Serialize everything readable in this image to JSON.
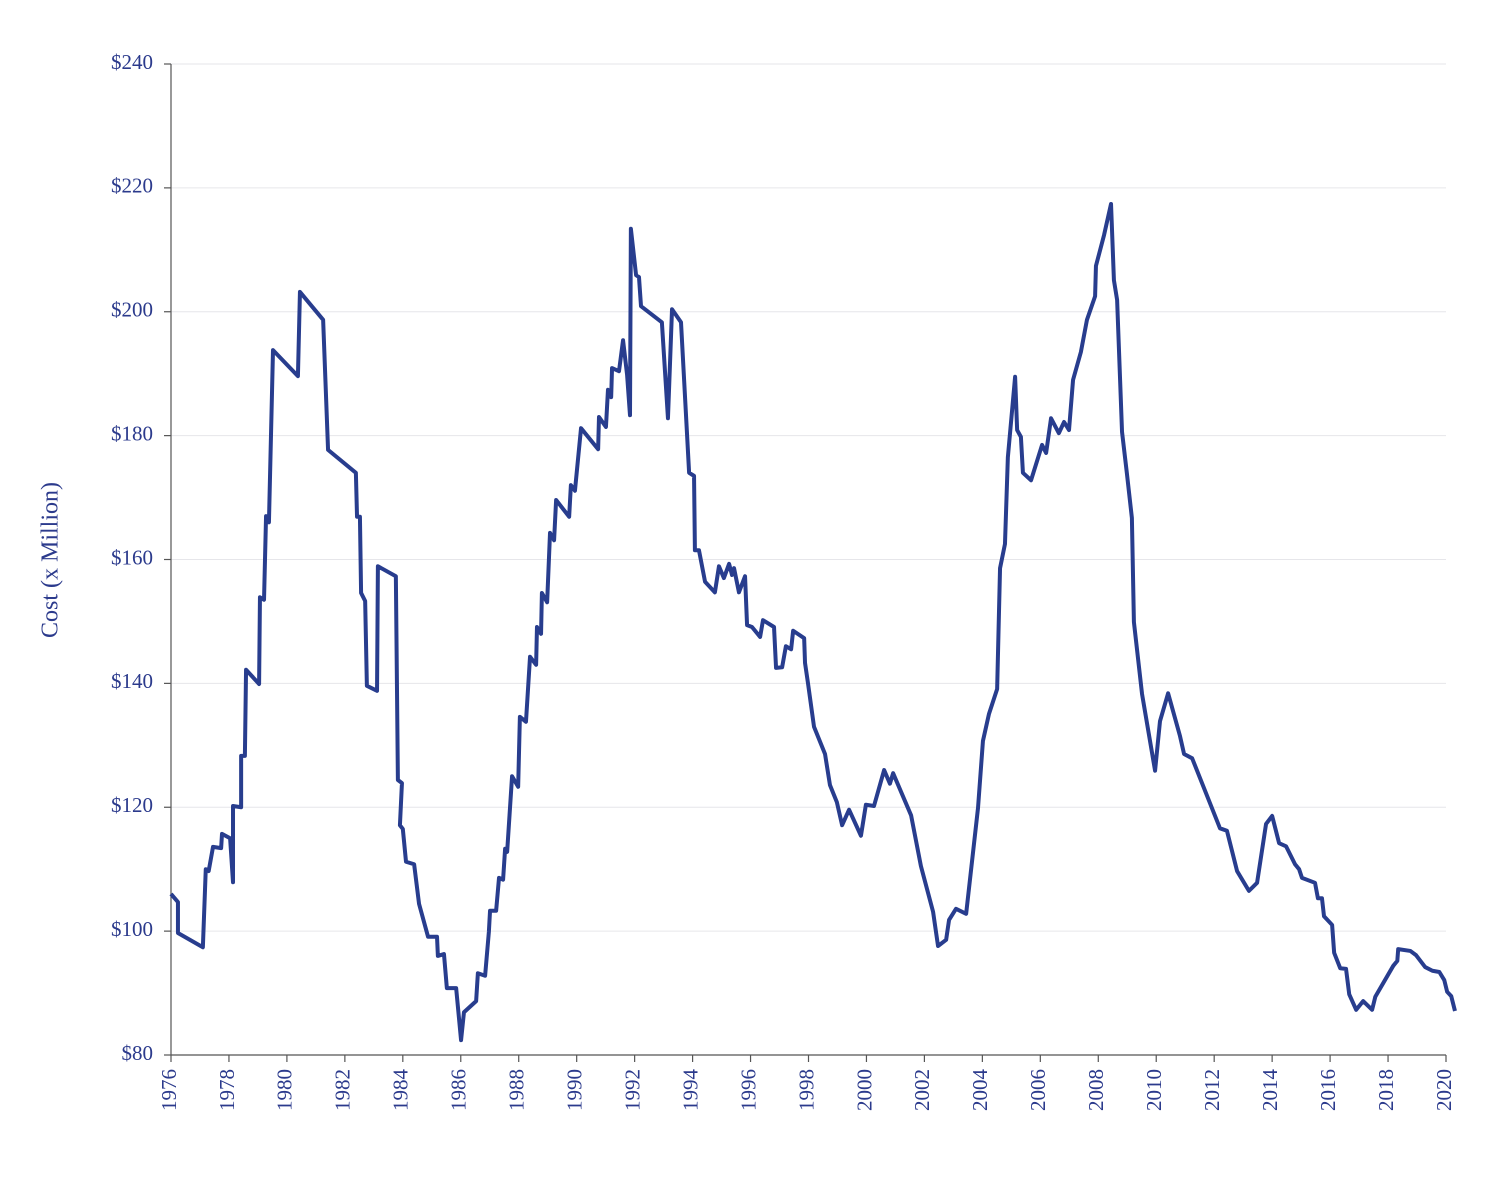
{
  "chart_data": {
    "type": "line",
    "y_label": "Cost (x Million)",
    "x": [
      1976.0,
      1976.24,
      1976.24,
      1977.1,
      1977.2,
      1977.3,
      1977.45,
      1977.73,
      1977.76,
      1978.04,
      1978.14,
      1978.14,
      1978.42,
      1978.42,
      1978.55,
      1978.59,
      1979.04,
      1979.07,
      1979.21,
      1979.28,
      1979.38,
      1979.52,
      1980.38,
      1980.45,
      1981.25,
      1981.42,
      1982.38,
      1982.42,
      1982.52,
      1982.56,
      1982.7,
      1982.76,
      1983.11,
      1983.14,
      1983.76,
      1983.83,
      1983.97,
      1983.9,
      1984.0,
      1984.11,
      1984.39,
      1984.56,
      1984.87,
      1985.18,
      1985.21,
      1985.42,
      1985.52,
      1985.84,
      1986.01,
      1986.11,
      1986.53,
      1986.59,
      1986.84,
      1986.97,
      1987.01,
      1987.22,
      1987.32,
      1987.46,
      1987.53,
      1987.6,
      1987.77,
      1987.98,
      1988.04,
      1988.25,
      1988.39,
      1988.6,
      1988.63,
      1988.77,
      1988.8,
      1988.98,
      1989.08,
      1989.22,
      1989.29,
      1989.74,
      1989.8,
      1989.94,
      1990.15,
      1990.74,
      1990.77,
      1991.01,
      1991.08,
      1991.19,
      1991.22,
      1991.46,
      1991.6,
      1991.74,
      1991.84,
      1991.87,
      1992.05,
      1992.15,
      1992.22,
      1992.94,
      1993.15,
      1993.29,
      1993.6,
      1993.88,
      1994.05,
      1994.08,
      1994.22,
      1994.43,
      1994.77,
      1994.91,
      1995.08,
      1995.26,
      1995.36,
      1995.43,
      1995.6,
      1995.81,
      1995.88,
      1996.05,
      1996.33,
      1996.43,
      1996.81,
      1996.88,
      1997.09,
      1997.22,
      1997.4,
      1997.47,
      1997.85,
      1997.88,
      1997.98,
      1998.19,
      1998.57,
      1998.74,
      1998.98,
      1999.16,
      1999.4,
      1999.81,
      1999.98,
      2000.26,
      2000.61,
      2000.81,
      2000.92,
      2001.54,
      2001.88,
      2002.3,
      2002.47,
      2002.75,
      2002.85,
      2003.09,
      2003.44,
      2003.85,
      2004.02,
      2004.23,
      2004.51,
      2004.61,
      2004.78,
      2004.88,
      2005.13,
      2005.2,
      2005.33,
      2005.4,
      2005.68,
      2006.06,
      2006.2,
      2006.37,
      2006.64,
      2006.82,
      2006.99,
      2007.13,
      2007.4,
      2007.61,
      2007.89,
      2007.92,
      2008.2,
      2008.44,
      2008.54,
      2008.65,
      2008.82,
      2008.99,
      2009.16,
      2009.23,
      2009.51,
      2009.96,
      2010.13,
      2010.41,
      2010.82,
      2010.96,
      2011.24,
      2012.2,
      2012.44,
      2012.79,
      2013.2,
      2013.48,
      2013.79,
      2014.0,
      2014.24,
      2014.48,
      2014.79,
      2014.93,
      2015.03,
      2015.48,
      2015.58,
      2015.72,
      2015.79,
      2016.07,
      2016.14,
      2016.35,
      2016.55,
      2016.66,
      2016.9,
      2017.14,
      2017.45,
      2017.56,
      2018.18,
      2018.32,
      2018.35,
      2018.77,
      2018.97,
      2019.28,
      2019.53,
      2019.77,
      2019.94,
      2020.04,
      2020.18,
      2020.31
    ],
    "series": [
      {
        "color": "#283d8e",
        "values": [
          106.0,
          104.7,
          99.7,
          97.4,
          110.0,
          109.7,
          113.6,
          113.4,
          115.7,
          115.0,
          107.9,
          120.2,
          120.0,
          128.3,
          128.3,
          142.2,
          139.9,
          153.9,
          153.5,
          167.0,
          166.0,
          193.8,
          189.6,
          203.2,
          198.7,
          177.7,
          174.0,
          166.9,
          166.9,
          154.6,
          153.3,
          139.6,
          138.8,
          158.9,
          157.3,
          124.4,
          123.9,
          117.1,
          116.5,
          111.2,
          110.8,
          104.4,
          99.1,
          99.1,
          96.0,
          96.3,
          90.8,
          90.8,
          82.4,
          86.9,
          88.7,
          93.2,
          92.8,
          99.9,
          103.3,
          103.3,
          108.6,
          108.3,
          113.3,
          112.8,
          125.0,
          123.3,
          134.6,
          133.8,
          144.3,
          143.0,
          149.1,
          148.0,
          154.6,
          153.1,
          164.3,
          163.1,
          169.6,
          166.9,
          172.0,
          171.1,
          181.2,
          177.8,
          183.0,
          181.4,
          187.4,
          186.2,
          190.9,
          190.4,
          195.4,
          189.8,
          183.3,
          213.4,
          205.9,
          205.6,
          200.9,
          198.3,
          182.8,
          200.4,
          198.3,
          174.0,
          173.5,
          161.5,
          161.5,
          156.4,
          154.7,
          158.9,
          157.0,
          159.3,
          157.5,
          158.6,
          154.7,
          157.3,
          149.4,
          149.1,
          147.5,
          150.2,
          149.1,
          142.5,
          142.6,
          146.0,
          145.5,
          148.5,
          147.3,
          143.3,
          140.1,
          133.0,
          128.6,
          123.6,
          120.8,
          117.1,
          119.6,
          115.4,
          120.4,
          120.2,
          126.0,
          123.8,
          125.5,
          118.7,
          110.5,
          103.1,
          97.6,
          98.6,
          101.8,
          103.6,
          102.8,
          119.9,
          130.7,
          135.1,
          139.1,
          158.6,
          162.5,
          176.5,
          189.5,
          180.9,
          179.8,
          174.0,
          172.8,
          178.5,
          177.2,
          182.8,
          180.4,
          182.2,
          180.9,
          189.0,
          193.5,
          198.7,
          202.5,
          207.4,
          212.4,
          217.4,
          205.1,
          201.9,
          180.6,
          173.8,
          166.7,
          149.9,
          138.3,
          125.9,
          133.9,
          138.4,
          131.5,
          128.6,
          127.9,
          116.6,
          116.2,
          109.7,
          106.5,
          107.8,
          117.3,
          118.6,
          114.2,
          113.7,
          110.8,
          110.0,
          108.6,
          107.8,
          105.3,
          105.3,
          102.4,
          101.0,
          96.5,
          94.0,
          93.9,
          89.8,
          87.3,
          88.7,
          87.3,
          89.4,
          94.4,
          95.2,
          97.1,
          96.8,
          96.1,
          94.2,
          93.6,
          93.4,
          92.1,
          90.2,
          89.5,
          87.1
        ]
      }
    ],
    "xlim": [
      1976,
      2020
    ],
    "xticks": [
      1976,
      1978,
      1980,
      1982,
      1984,
      1986,
      1988,
      1990,
      1992,
      1994,
      1996,
      1998,
      2000,
      2002,
      2004,
      2006,
      2008,
      2010,
      2012,
      2014,
      2016,
      2018,
      2020
    ],
    "ylim": [
      80,
      240
    ],
    "yticks": [
      {
        "value": 80,
        "label": "$80"
      },
      {
        "value": 100,
        "label": "$100"
      },
      {
        "value": 120,
        "label": "$120"
      },
      {
        "value": 140,
        "label": "$140"
      },
      {
        "value": 160,
        "label": "$160"
      },
      {
        "value": 180,
        "label": "$180"
      },
      {
        "value": 200,
        "label": "$200"
      },
      {
        "value": 220,
        "label": "$220"
      },
      {
        "value": 240,
        "label": "$240"
      }
    ],
    "grid": true
  }
}
